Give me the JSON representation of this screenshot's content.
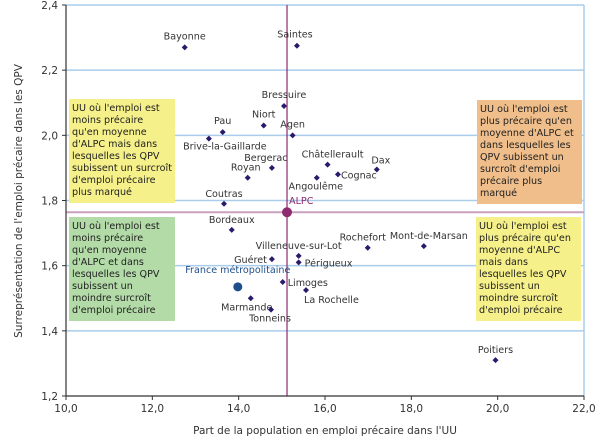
{
  "chart_data": {
    "type": "scatter",
    "xlabel": "Part de la population en emploi précaire dans l'UU",
    "ylabel": "Surreprésentation de l'emploi précaire dans les QPV",
    "xlim": [
      10,
      22
    ],
    "ylim": [
      1.2,
      2.4
    ],
    "x_ticks": [
      "10,0",
      "12,0",
      "14,0",
      "16,0",
      "18,0",
      "20,0",
      "22,0"
    ],
    "y_ticks": [
      "1,2",
      "1,4",
      "1,6",
      "1,8",
      "2,0",
      "2,2",
      "2,4"
    ],
    "grid": "horizontal",
    "colors": {
      "points": "#2b1a6b",
      "reference": "#8e2a6e",
      "france": "#1f4e8c",
      "grid": "#a9cdeb"
    },
    "points": [
      {
        "label": "Bayonne",
        "x": 12.75,
        "y": 2.27
      },
      {
        "label": "Saintes",
        "x": 15.35,
        "y": 2.275
      },
      {
        "label": "Bressuire",
        "x": 15.05,
        "y": 2.09
      },
      {
        "label": "Niort",
        "x": 14.58,
        "y": 2.03
      },
      {
        "label": "Agen",
        "x": 15.25,
        "y": 2.0
      },
      {
        "label": "Pau",
        "x": 13.63,
        "y": 2.01
      },
      {
        "label": "Brive-la-Gaillarde",
        "x": 13.31,
        "y": 1.99
      },
      {
        "label": "Bergerac",
        "x": 14.77,
        "y": 1.9
      },
      {
        "label": "Royan",
        "x": 14.21,
        "y": 1.87
      },
      {
        "label": "Châtellerault",
        "x": 16.06,
        "y": 1.91
      },
      {
        "label": "Cognac",
        "x": 16.3,
        "y": 1.88
      },
      {
        "label": "Angoulême",
        "x": 15.81,
        "y": 1.87
      },
      {
        "label": "Dax",
        "x": 17.2,
        "y": 1.895
      },
      {
        "label": "Coutras",
        "x": 13.66,
        "y": 1.79
      },
      {
        "label": "Bordeaux",
        "x": 13.84,
        "y": 1.71
      },
      {
        "label": "Villeneuve-sur-Lot",
        "x": 15.39,
        "y": 1.63
      },
      {
        "label": "Périgueux",
        "x": 15.39,
        "y": 1.61
      },
      {
        "label": "Guéret",
        "x": 14.77,
        "y": 1.62
      },
      {
        "label": "Limoges",
        "x": 15.02,
        "y": 1.55
      },
      {
        "label": "La Rochelle",
        "x": 15.56,
        "y": 1.525
      },
      {
        "label": "Marmande",
        "x": 14.28,
        "y": 1.5
      },
      {
        "label": "Tonneins",
        "x": 14.75,
        "y": 1.465
      },
      {
        "label": "Rochefort",
        "x": 16.99,
        "y": 1.655
      },
      {
        "label": "Mont-de-Marsan",
        "x": 18.29,
        "y": 1.66
      },
      {
        "label": "Poitiers",
        "x": 19.95,
        "y": 1.31
      }
    ],
    "reference": {
      "label": "ALPC",
      "x": 15.12,
      "y": 1.764
    },
    "france": {
      "label": "France métropolitaine",
      "x": 13.98,
      "y": 1.535
    },
    "annotations": [
      {
        "text": "UU où l'emploi est moins précaire qu'en moyenne d'ALPC mais dans lesquelles les QPV subissent un surcroît d'emploi précaire plus marqué",
        "color": "#f5f08a"
      },
      {
        "text": "UU où l'emploi est plus précaire qu'en moyenne d'ALPC et dans lesquelles les QPV subissent un surcroît d'emploi précaire plus marqué",
        "color": "#f0be8a"
      },
      {
        "text": "UU où l'emploi est moins précaire qu'en moyenne d'ALPC et dans lesquelles les QPV subissent un moindre surcroît d'emploi précaire",
        "color": "#b3dba8"
      },
      {
        "text": "UU où l'emploi est plus précaire qu'en moyenne d'ALPC mais dans lesquelles les QPV subissent un moindre surcroît d'emploi précaire",
        "color": "#f5f08a"
      }
    ]
  }
}
